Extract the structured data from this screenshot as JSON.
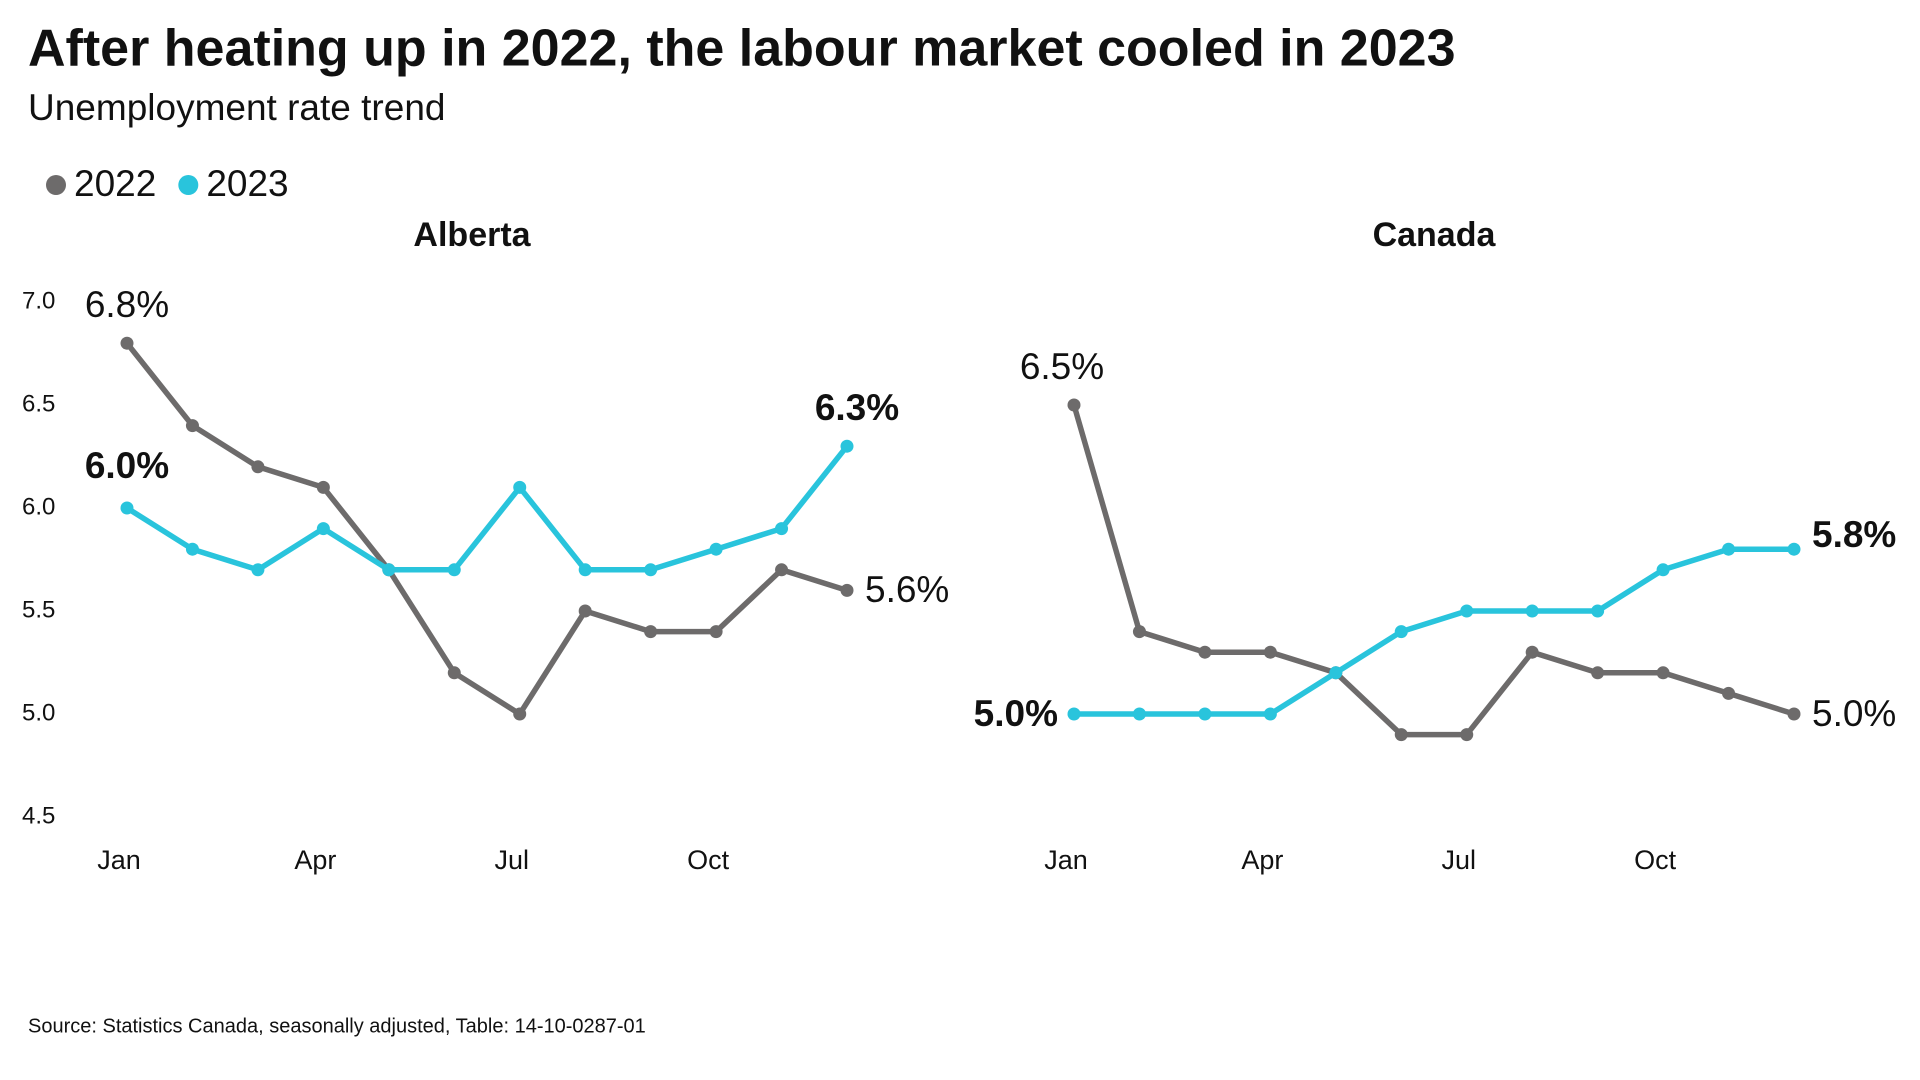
{
  "title": "After heating up in 2022, the labour market cooled in 2023",
  "subtitle": "Unemployment rate trend",
  "source": "Source: Statistics Canada, seasonally adjusted, Table: 14-10-0287-01",
  "chart_data": [
    {
      "type": "line",
      "title": "Alberta",
      "categories": [
        "Jan",
        null,
        null,
        "Apr",
        null,
        null,
        "Jul",
        null,
        null,
        "Oct",
        null,
        null
      ],
      "ylim": [
        4.5,
        7.0
      ],
      "yticks": [
        4.5,
        {
          "value": 5,
          "label": "5.0"
        },
        5.5,
        {
          "value": 6,
          "label": "6.0"
        },
        6.5,
        {
          "value": 7,
          "label": "7.0"
        }
      ],
      "series": [
        {
          "name": "2022",
          "color": "#6d6b6b",
          "values": [
            6.8,
            6.4,
            6.2,
            6.1,
            5.7,
            5.2,
            5.0,
            5.5,
            5.4,
            5.4,
            5.7,
            5.6
          ],
          "value_labels": [
            "6.8%",
            null,
            null,
            null,
            null,
            null,
            null,
            null,
            null,
            null,
            null,
            "5.6%"
          ]
        },
        {
          "name": "2023",
          "color": "#29c4dc",
          "values": [
            6.0,
            5.8,
            5.7,
            5.9,
            5.7,
            5.7,
            6.1,
            5.7,
            5.7,
            5.8,
            5.9,
            6.3
          ],
          "value_labels": [
            "6.0%",
            null,
            null,
            null,
            null,
            null,
            null,
            null,
            null,
            null,
            null,
            "6.3%"
          ]
        }
      ]
    },
    {
      "type": "line",
      "title": "Canada",
      "categories": [
        "Jan",
        null,
        null,
        "Apr",
        null,
        null,
        "Jul",
        null,
        null,
        "Oct",
        null,
        null
      ],
      "ylim": [
        4.5,
        7.0
      ],
      "series": [
        {
          "name": "2022",
          "color": "#6d6b6b",
          "values": [
            6.5,
            5.4,
            5.3,
            5.3,
            5.2,
            4.9,
            4.9,
            5.3,
            5.2,
            5.2,
            5.1,
            5.0
          ],
          "value_labels": [
            "6.5%",
            null,
            null,
            null,
            null,
            null,
            null,
            null,
            null,
            null,
            null,
            "5.0%"
          ]
        },
        {
          "name": "2023",
          "color": "#29c4dc",
          "values": [
            5.0,
            5.0,
            5.0,
            5.0,
            5.2,
            5.4,
            5.5,
            5.5,
            5.5,
            5.7,
            5.8,
            5.8
          ],
          "value_labels": [
            "5.0%",
            null,
            null,
            null,
            null,
            null,
            null,
            null,
            null,
            null,
            null,
            "5.8%"
          ]
        }
      ]
    }
  ]
}
